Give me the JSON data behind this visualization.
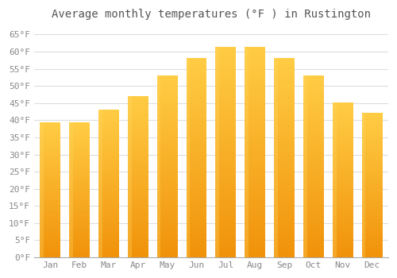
{
  "title": "Average monthly temperatures (°F ) in Rustington",
  "months": [
    "Jan",
    "Feb",
    "Mar",
    "Apr",
    "May",
    "Jun",
    "Jul",
    "Aug",
    "Sep",
    "Oct",
    "Nov",
    "Dec"
  ],
  "values": [
    39.2,
    39.2,
    43.0,
    47.0,
    53.0,
    58.0,
    61.2,
    61.2,
    58.0,
    53.0,
    45.0,
    42.0
  ],
  "bar_color_bottom": "#F0920A",
  "bar_color_mid": "#FBB829",
  "bar_color_top": "#FFCC44",
  "background_color": "#FFFFFF",
  "grid_color": "#DDDDDD",
  "text_color": "#888888",
  "ylim": [
    0,
    68
  ],
  "yticks": [
    0,
    5,
    10,
    15,
    20,
    25,
    30,
    35,
    40,
    45,
    50,
    55,
    60,
    65
  ],
  "title_fontsize": 10,
  "tick_fontsize": 8
}
